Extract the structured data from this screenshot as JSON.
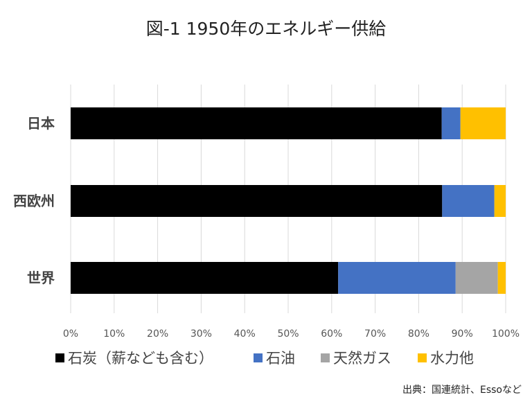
{
  "chart_data": {
    "type": "bar",
    "orientation": "horizontal",
    "stacked": true,
    "title": "図-1 1950年のエネルギー供給",
    "categories": [
      "日本",
      "西欧州",
      "世界"
    ],
    "series": [
      {
        "name": "石炭（薪なども含む）",
        "color": "#000000",
        "values": [
          85.3,
          85.4,
          61.5
        ]
      },
      {
        "name": "石油",
        "color": "#4472C4",
        "values": [
          4.3,
          12.0,
          27.0
        ]
      },
      {
        "name": "天然ガス",
        "color": "#A5A5A5",
        "values": [
          0,
          0,
          9.7
        ]
      },
      {
        "name": "水力他",
        "color": "#FFC000",
        "values": [
          10.4,
          2.6,
          1.8
        ]
      }
    ],
    "xlim": [
      0,
      100
    ],
    "xticks": [
      "0%",
      "10%",
      "20%",
      "30%",
      "40%",
      "50%",
      "60%",
      "70%",
      "80%",
      "90%",
      "100%"
    ],
    "grid": true,
    "legend_position": "bottom",
    "source": "出典：国連統計、Essoなど"
  }
}
